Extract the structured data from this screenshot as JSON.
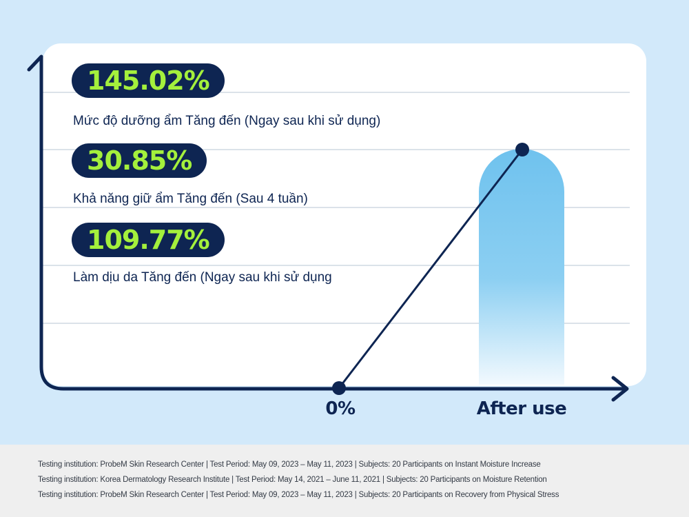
{
  "chart_data": {
    "type": "line",
    "categories": [
      "0%",
      "After use"
    ],
    "highlights": [
      {
        "value": "145.02%",
        "label": "Mức độ dưỡng ẩm Tăng đến (Ngay sau khi sử dụng)"
      },
      {
        "value": "30.85%",
        "label": "Khả năng giữ ẩm Tăng đến (Sau 4 tuần)"
      },
      {
        "value": "109.77%",
        "label": "Làm dịu da Tăng đến (Ngay sau khi sử dụng"
      }
    ],
    "grid": true,
    "colors": {
      "navy": "#0e2552",
      "accent": "#a4f03c",
      "bar": "#6fc2ee",
      "background": "#d2e9fa"
    }
  },
  "footer": {
    "notes": [
      "Testing institution: ProbeM Skin Research Center | Test Period: May 09, 2023 – May 11, 2023 | Subjects: 20 Participants on Instant Moisture Increase",
      "Testing institution: Korea Dermatology Research Institute | Test Period: May 14, 2021 – June 11, 2021 | Subjects: 20 Participants on Moisture Retention",
      "Testing institution: ProbeM Skin Research Center | Test Period: May 09, 2023 – May 11, 2023 | Subjects: 20 Participants on Recovery from Physical Stress"
    ]
  }
}
